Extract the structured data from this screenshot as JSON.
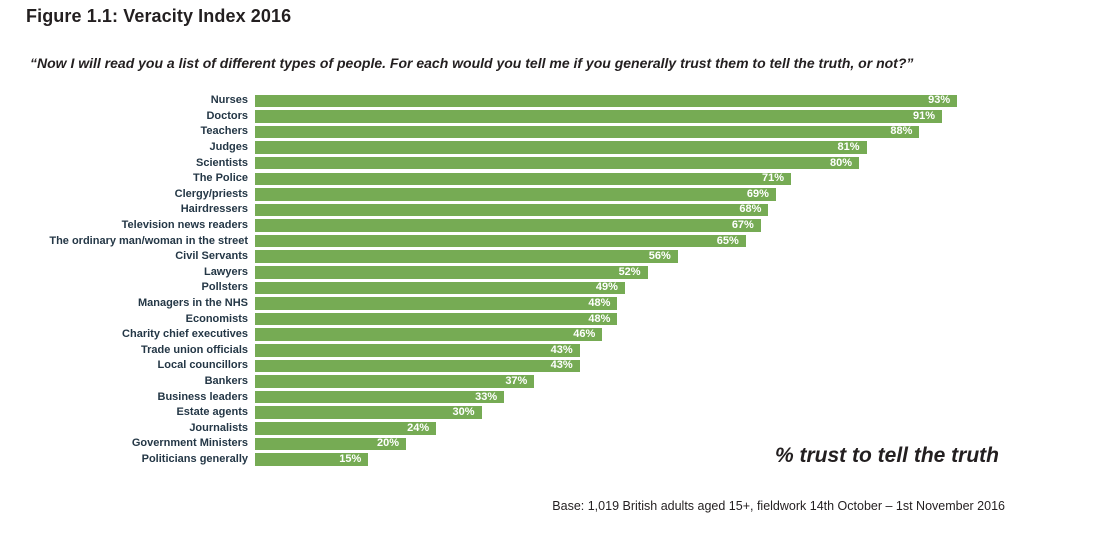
{
  "figure": {
    "title": "Figure 1.1: Veracity Index 2016",
    "subtitle": "“Now I will read you a list of different types of people. For each would you tell me if you generally trust them to tell the truth, or not?”",
    "axis_note": "% trust to tell the truth",
    "base_note": "Base: 1,019 British adults aged 15+, fieldwork 14th October – 1st November 2016"
  },
  "colors": {
    "bar": "#76ab54",
    "category_label": "#243746",
    "value_label": "#ffffff",
    "text": "#231f20"
  },
  "chart_data": {
    "type": "bar",
    "orientation": "horizontal",
    "title": "Veracity Index 2016",
    "xlabel": "% trust to tell the truth",
    "ylabel": "",
    "xlim": [
      0,
      100
    ],
    "unit": "%",
    "grid": false,
    "legend": false,
    "value_labels": "inside-end, white bold",
    "categories": [
      "Nurses",
      "Doctors",
      "Teachers",
      "Judges",
      "Scientists",
      "The Police",
      "Clergy/priests",
      "Hairdressers",
      "Television news readers",
      "The ordinary man/woman in the street",
      "Civil Servants",
      "Lawyers",
      "Pollsters",
      "Managers in the NHS",
      "Economists",
      "Charity chief executives",
      "Trade union officials",
      "Local councillors",
      "Bankers",
      "Business leaders",
      "Estate agents",
      "Journalists",
      "Government Ministers",
      "Politicians generally"
    ],
    "values": [
      93,
      91,
      88,
      81,
      80,
      71,
      69,
      68,
      67,
      65,
      56,
      52,
      49,
      48,
      48,
      46,
      43,
      43,
      37,
      33,
      30,
      24,
      20,
      15
    ]
  }
}
